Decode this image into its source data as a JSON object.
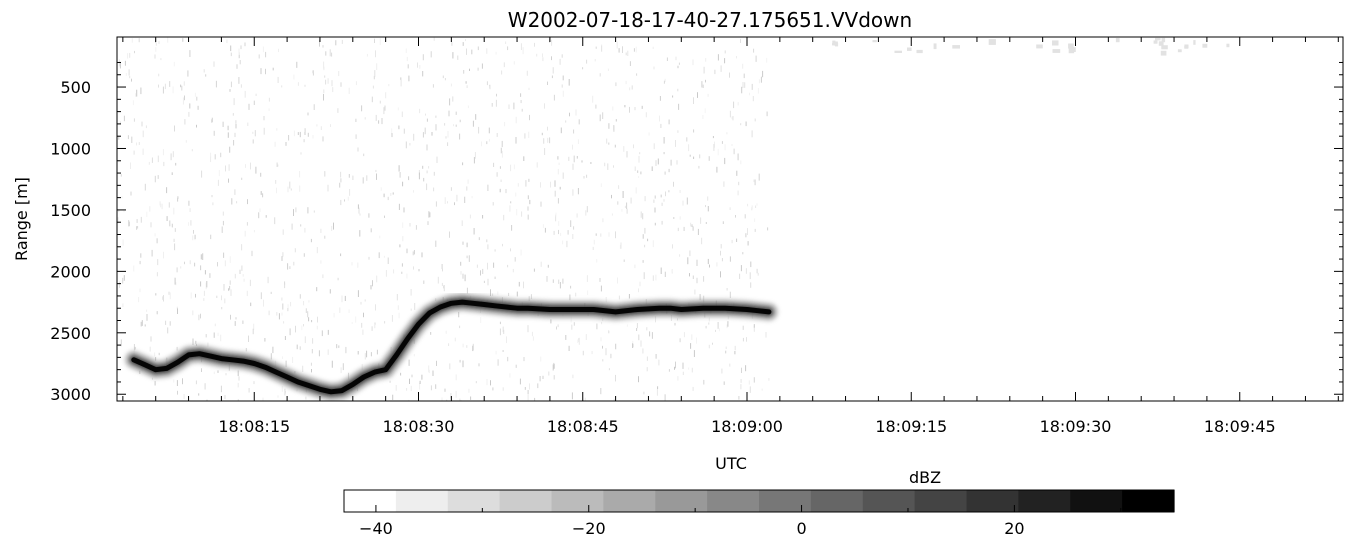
{
  "chart_data": {
    "type": "heatmap",
    "title": "W2002-07-18-17-40-27.175651.VVdown",
    "xlabel": "UTC",
    "ylabel": "Range [m]",
    "x_tick_labels": [
      "18:08:15",
      "18:08:30",
      "18:08:45",
      "18:09:00",
      "18:09:15",
      "18:09:30",
      "18:09:45"
    ],
    "x_range_seconds_after_18_08_00": [
      4,
      62
    ],
    "y_tick_values": [
      500,
      1000,
      1500,
      2000,
      2500,
      3000
    ],
    "ylim": [
      170,
      3040
    ],
    "y_inverted": true,
    "colorbar": {
      "label": "dBZ",
      "ticks": [
        -40,
        -20,
        0,
        20
      ],
      "range": [
        -43,
        35
      ],
      "levels": 16,
      "colormap": "white-to-black grayscale"
    },
    "series": [
      {
        "x_seconds": [
          4,
          5,
          6,
          7,
          8,
          9,
          10,
          11,
          12,
          13,
          14,
          15,
          16,
          17,
          18,
          19,
          20,
          21,
          22,
          23,
          24,
          25,
          26,
          27,
          28,
          29,
          30,
          31,
          32,
          33,
          34,
          35,
          36,
          37,
          38,
          39,
          40,
          42,
          44,
          46,
          48,
          50,
          52,
          53,
          54,
          56,
          58,
          60,
          61,
          62
        ],
        "range_m": [
          2720,
          2760,
          2800,
          2790,
          2740,
          2680,
          2670,
          2690,
          2710,
          2720,
          2730,
          2750,
          2780,
          2820,
          2860,
          2900,
          2930,
          2960,
          2980,
          2970,
          2920,
          2860,
          2820,
          2800,
          2680,
          2550,
          2430,
          2340,
          2290,
          2260,
          2250,
          2260,
          2270,
          2280,
          2290,
          2300,
          2300,
          2310,
          2310,
          2310,
          2330,
          2310,
          2300,
          2300,
          2310,
          2300,
          2300,
          2310,
          2320,
          2330
        ]
      }
    ]
  }
}
